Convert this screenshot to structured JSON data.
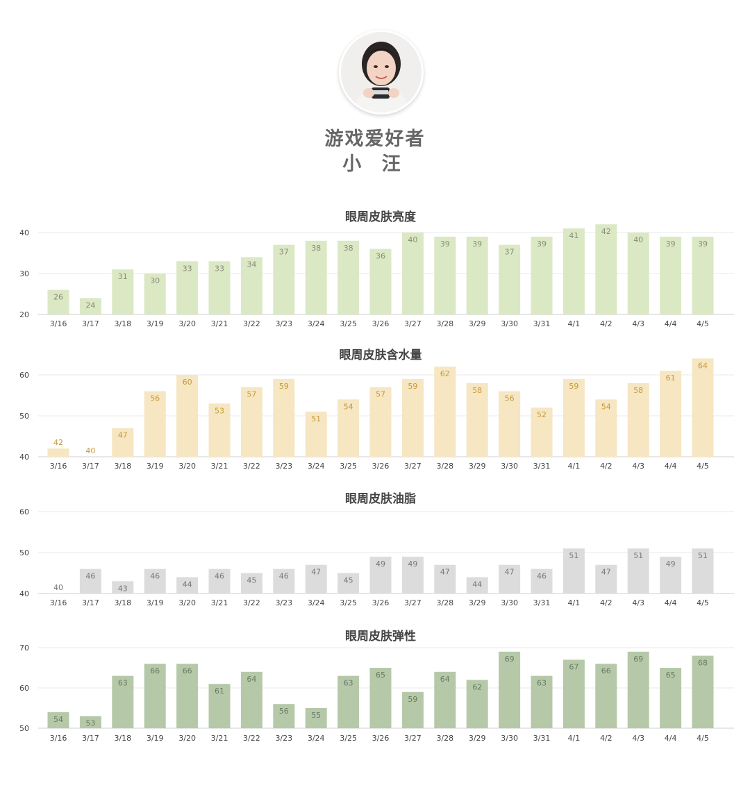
{
  "profile": {
    "line1": "游戏爱好者",
    "line2": "小 汪"
  },
  "chart_data": [
    {
      "type": "bar",
      "title": "眼周皮肤亮度",
      "categories": [
        "3/16",
        "3/17",
        "3/18",
        "3/19",
        "3/20",
        "3/21",
        "3/22",
        "3/23",
        "3/24",
        "3/25",
        "3/26",
        "3/27",
        "3/28",
        "3/29",
        "3/30",
        "3/31",
        "4/1",
        "4/2",
        "4/3",
        "4/4",
        "4/5"
      ],
      "values": [
        26,
        24,
        31,
        30,
        33,
        33,
        34,
        37,
        38,
        38,
        36,
        40,
        39,
        39,
        37,
        39,
        41,
        42,
        40,
        39,
        39
      ],
      "ylim": [
        20,
        40
      ],
      "yticks": [
        20,
        30,
        40
      ],
      "grid": true,
      "color": "#dbe8c4",
      "label_color": "#8a8a7a"
    },
    {
      "type": "bar",
      "title": "眼周皮肤含水量",
      "categories": [
        "3/16",
        "3/17",
        "3/18",
        "3/19",
        "3/20",
        "3/21",
        "3/22",
        "3/23",
        "3/24",
        "3/25",
        "3/26",
        "3/27",
        "3/28",
        "3/29",
        "3/30",
        "3/31",
        "4/1",
        "4/2",
        "4/3",
        "4/4",
        "4/5"
      ],
      "values": [
        42,
        40,
        47,
        56,
        60,
        53,
        57,
        59,
        51,
        54,
        57,
        59,
        62,
        58,
        56,
        52,
        59,
        54,
        58,
        61,
        64
      ],
      "ylim": [
        40,
        60
      ],
      "yticks": [
        40,
        50,
        60
      ],
      "grid": true,
      "color": "#f6e6c2",
      "label_color": "#c49a3c"
    },
    {
      "type": "bar",
      "title": "眼周皮肤油脂",
      "categories": [
        "3/16",
        "3/17",
        "3/18",
        "3/19",
        "3/20",
        "3/21",
        "3/22",
        "3/23",
        "3/24",
        "3/25",
        "3/26",
        "3/27",
        "3/28",
        "3/29",
        "3/30",
        "3/31",
        "4/1",
        "4/2",
        "4/3",
        "4/4",
        "4/5"
      ],
      "values": [
        40,
        46,
        43,
        46,
        44,
        46,
        45,
        46,
        47,
        45,
        49,
        49,
        47,
        44,
        47,
        46,
        51,
        47,
        51,
        49,
        51
      ],
      "ylim": [
        40,
        60
      ],
      "yticks": [
        40,
        50,
        60
      ],
      "grid": true,
      "color": "#dcdcdc",
      "label_color": "#777777"
    },
    {
      "type": "bar",
      "title": "眼周皮肤弹性",
      "categories": [
        "3/16",
        "3/17",
        "3/18",
        "3/19",
        "3/20",
        "3/21",
        "3/22",
        "3/23",
        "3/24",
        "3/25",
        "3/26",
        "3/27",
        "3/28",
        "3/29",
        "3/30",
        "3/31",
        "4/1",
        "4/2",
        "4/3",
        "4/4",
        "4/5"
      ],
      "values": [
        54,
        53,
        63,
        66,
        66,
        61,
        64,
        56,
        55,
        63,
        65,
        59,
        64,
        62,
        69,
        63,
        67,
        66,
        69,
        65,
        68
      ],
      "ylim": [
        50,
        70
      ],
      "yticks": [
        50,
        60,
        70
      ],
      "grid": true,
      "color": "#b5c9a9",
      "label_color": "#6a7a62"
    }
  ]
}
